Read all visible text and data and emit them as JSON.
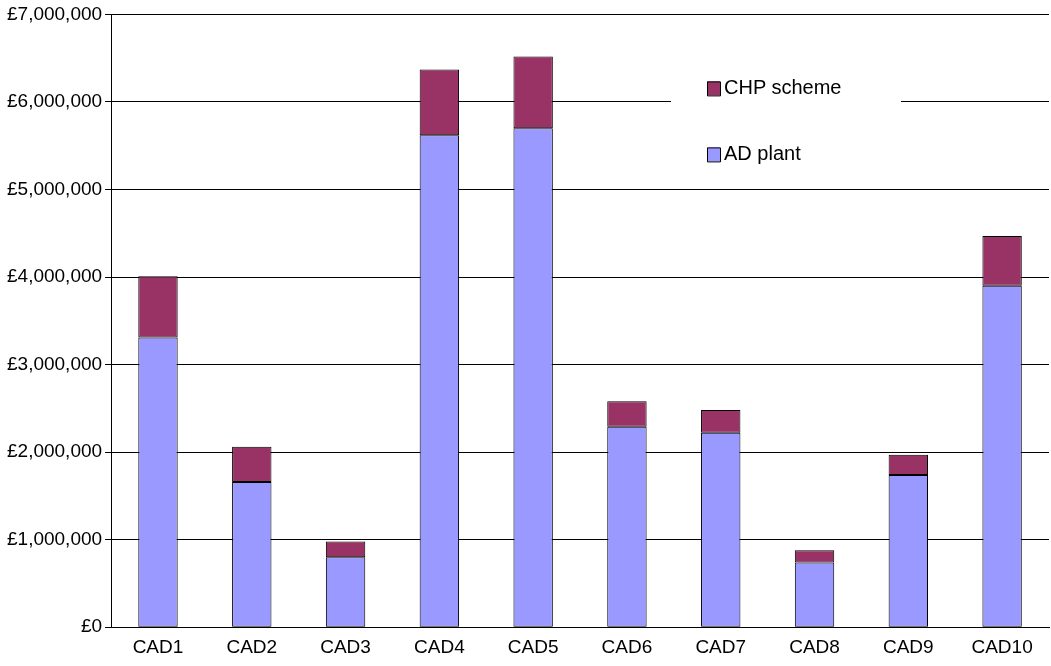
{
  "chart_data": {
    "type": "bar",
    "stacked": true,
    "categories": [
      "CAD1",
      "CAD2",
      "CAD3",
      "CAD4",
      "CAD5",
      "CAD6",
      "CAD7",
      "CAD8",
      "CAD9",
      "CAD10"
    ],
    "series": [
      {
        "name": "AD plant",
        "color": "#9999ff",
        "values": [
          3310000,
          1660000,
          800000,
          5620000,
          5700000,
          2290000,
          2220000,
          740000,
          1740000,
          3900000
        ]
      },
      {
        "name": "CHP scheme",
        "color": "#993366",
        "values": [
          700000,
          400000,
          180000,
          750000,
          820000,
          290000,
          260000,
          140000,
          230000,
          570000
        ]
      }
    ],
    "ylim": [
      0,
      7000000
    ],
    "yticks": [
      {
        "value": 0,
        "label": "£0"
      },
      {
        "value": 1000000,
        "label": "£1,000,000"
      },
      {
        "value": 2000000,
        "label": "£2,000,000"
      },
      {
        "value": 3000000,
        "label": "£3,000,000"
      },
      {
        "value": 4000000,
        "label": "£4,000,000"
      },
      {
        "value": 5000000,
        "label": "£5,000,000"
      },
      {
        "value": 6000000,
        "label": "£6,000,000"
      },
      {
        "value": 7000000,
        "label": "£7,000,000"
      }
    ],
    "grid": "y",
    "legend": "top right"
  }
}
